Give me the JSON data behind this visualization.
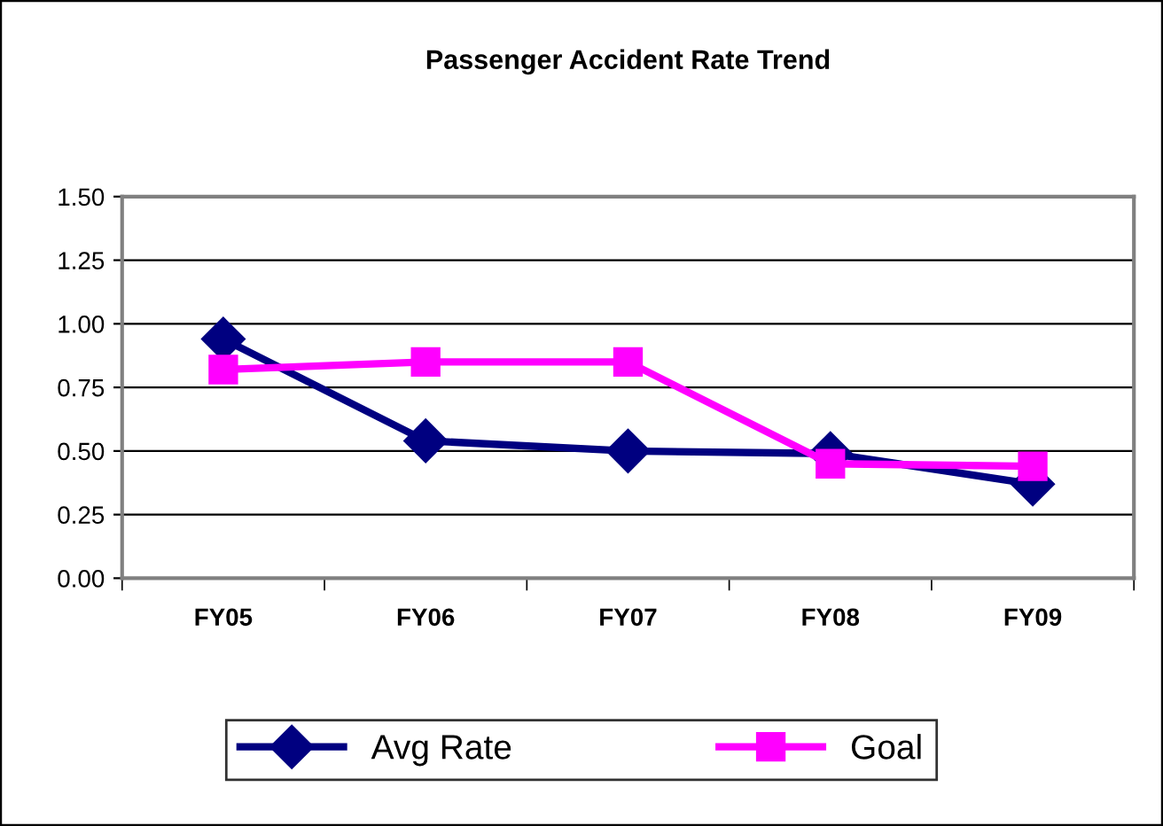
{
  "chart_data": {
    "type": "line",
    "title": "Passenger Accident Rate Trend",
    "categories": [
      "FY05",
      "FY06",
      "FY07",
      "FY08",
      "FY09"
    ],
    "series": [
      {
        "name": "Avg Rate",
        "color": "#000080",
        "values": [
          0.94,
          0.54,
          0.5,
          0.49,
          0.37
        ],
        "marker": "diamond"
      },
      {
        "name": "Goal",
        "color": "#ff00ff",
        "values": [
          0.82,
          0.85,
          0.85,
          0.45,
          0.44
        ],
        "marker": "square"
      }
    ],
    "ylim": [
      0,
      1.5
    ],
    "yticks": [
      {
        "value": 0,
        "label": "0.00"
      },
      {
        "value": 0.25,
        "label": "0.25"
      },
      {
        "value": 0.5,
        "label": "0.50"
      },
      {
        "value": 0.75,
        "label": "0.75"
      },
      {
        "value": 1,
        "label": "1.00"
      },
      {
        "value": 1.25,
        "label": "1.25"
      },
      {
        "value": 1.5,
        "label": "1.50"
      }
    ],
    "grid": "y",
    "legend": "bottom",
    "line_style": "solid"
  }
}
